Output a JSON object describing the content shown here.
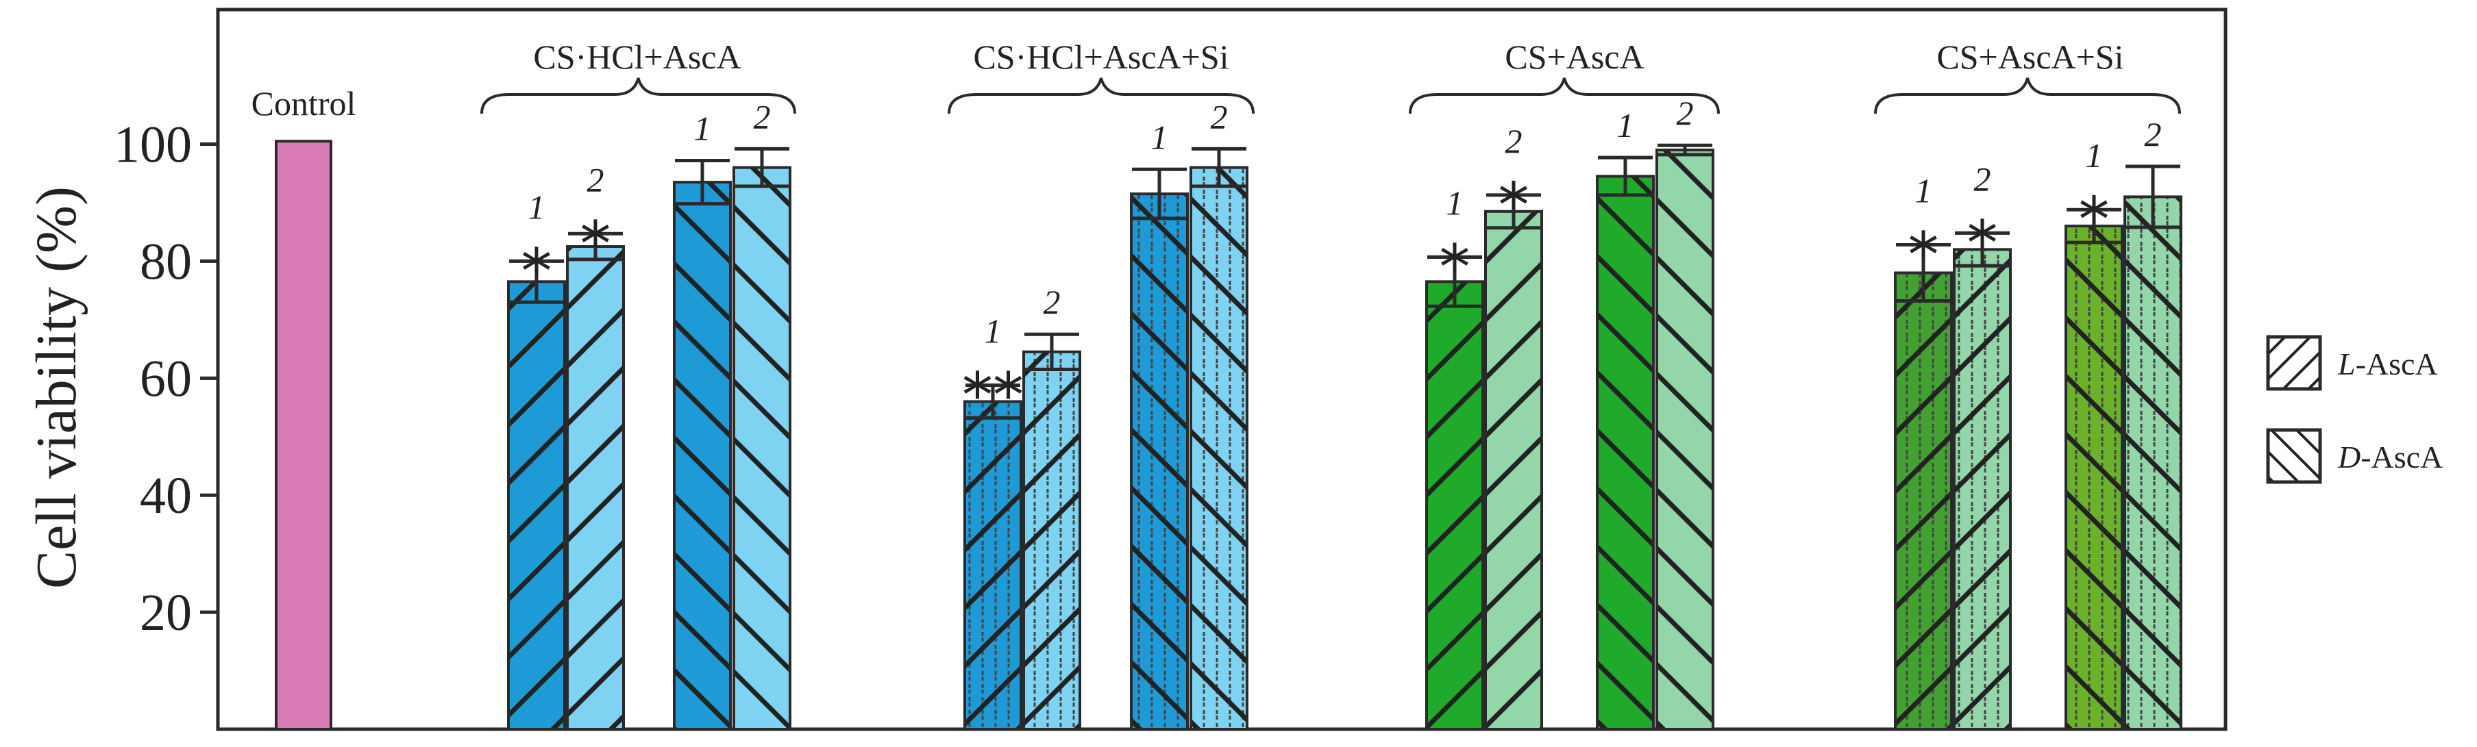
{
  "chart_data": {
    "type": "bar",
    "ylabel": "Cell viability (%)",
    "ylim": [
      0,
      123
    ],
    "yticks": [
      20,
      40,
      60,
      80,
      100
    ],
    "control": {
      "label": "Control",
      "value": 100.5,
      "color": "#d97bb4"
    },
    "groups": [
      {
        "title": "CS·HCl+AscA",
        "bars": [
          {
            "num": "1",
            "isomer": "L-AscA",
            "value": 76.5,
            "err": 3.5,
            "sig": "*",
            "fill": "#1e9ad6",
            "pattern": "diag-right"
          },
          {
            "num": "2",
            "isomer": "L-AscA",
            "value": 82.5,
            "err": 2.2,
            "sig": "*",
            "fill": "#7fd3f2",
            "pattern": "diag-right"
          },
          {
            "num": "1",
            "isomer": "D-AscA",
            "value": 93.5,
            "err": 3.7,
            "sig": "",
            "fill": "#1e9ad6",
            "pattern": "diag-left"
          },
          {
            "num": "2",
            "isomer": "D-AscA",
            "value": 96.0,
            "err": 3.2,
            "sig": "",
            "fill": "#7fd3f2",
            "pattern": "diag-left"
          }
        ]
      },
      {
        "title": "CS·HCl+AscA+Si",
        "bars": [
          {
            "num": "1",
            "isomer": "L-AscA",
            "value": 56.0,
            "err": 2.8,
            "sig": "**",
            "fill": "#1e9ad6",
            "pattern": "diag-right-vert"
          },
          {
            "num": "2",
            "isomer": "L-AscA",
            "value": 64.5,
            "err": 3.0,
            "sig": "",
            "fill": "#7fd3f2",
            "pattern": "diag-right-vert"
          },
          {
            "num": "1",
            "isomer": "D-AscA",
            "value": 91.5,
            "err": 4.2,
            "sig": "",
            "fill": "#1e9ad6",
            "pattern": "diag-left-vert"
          },
          {
            "num": "2",
            "isomer": "D-AscA",
            "value": 96.0,
            "err": 3.2,
            "sig": "",
            "fill": "#7fd3f2",
            "pattern": "diag-left-vert"
          }
        ]
      },
      {
        "title": "CS+AscA",
        "bars": [
          {
            "num": "1",
            "isomer": "L-AscA",
            "value": 76.5,
            "err": 4.2,
            "sig": "*",
            "fill": "#1faa2c",
            "pattern": "diag-right"
          },
          {
            "num": "2",
            "isomer": "L-AscA",
            "value": 88.5,
            "err": 2.8,
            "sig": "*",
            "fill": "#93d6aa",
            "pattern": "diag-right"
          },
          {
            "num": "1",
            "isomer": "D-AscA",
            "value": 94.5,
            "err": 3.2,
            "sig": "",
            "fill": "#1faa2c",
            "pattern": "diag-left"
          },
          {
            "num": "2",
            "isomer": "D-AscA",
            "value": 99.0,
            "err": 0.8,
            "sig": "",
            "fill": "#93d6aa",
            "pattern": "diag-left"
          }
        ]
      },
      {
        "title": "CS+AscA+Si",
        "bars": [
          {
            "num": "1",
            "isomer": "L-AscA",
            "value": 78.0,
            "err": 4.8,
            "sig": "*",
            "fill": "#43a132",
            "pattern": "diag-right-vert"
          },
          {
            "num": "2",
            "isomer": "L-AscA",
            "value": 82.0,
            "err": 2.8,
            "sig": "*",
            "fill": "#93d6aa",
            "pattern": "diag-right-vert"
          },
          {
            "num": "1",
            "isomer": "D-AscA",
            "value": 86.0,
            "err": 2.8,
            "sig": "*",
            "fill": "#6bb22a",
            "pattern": "diag-left-vert"
          },
          {
            "num": "2",
            "isomer": "D-AscA",
            "value": 91.0,
            "err": 5.2,
            "sig": "",
            "fill": "#93d6aa",
            "pattern": "diag-left-vert"
          }
        ]
      }
    ],
    "legend": [
      {
        "prefix": "L",
        "suffix": "-AscA",
        "pattern": "diag-right"
      },
      {
        "prefix": "D",
        "suffix": "-AscA",
        "pattern": "diag-left"
      }
    ]
  }
}
